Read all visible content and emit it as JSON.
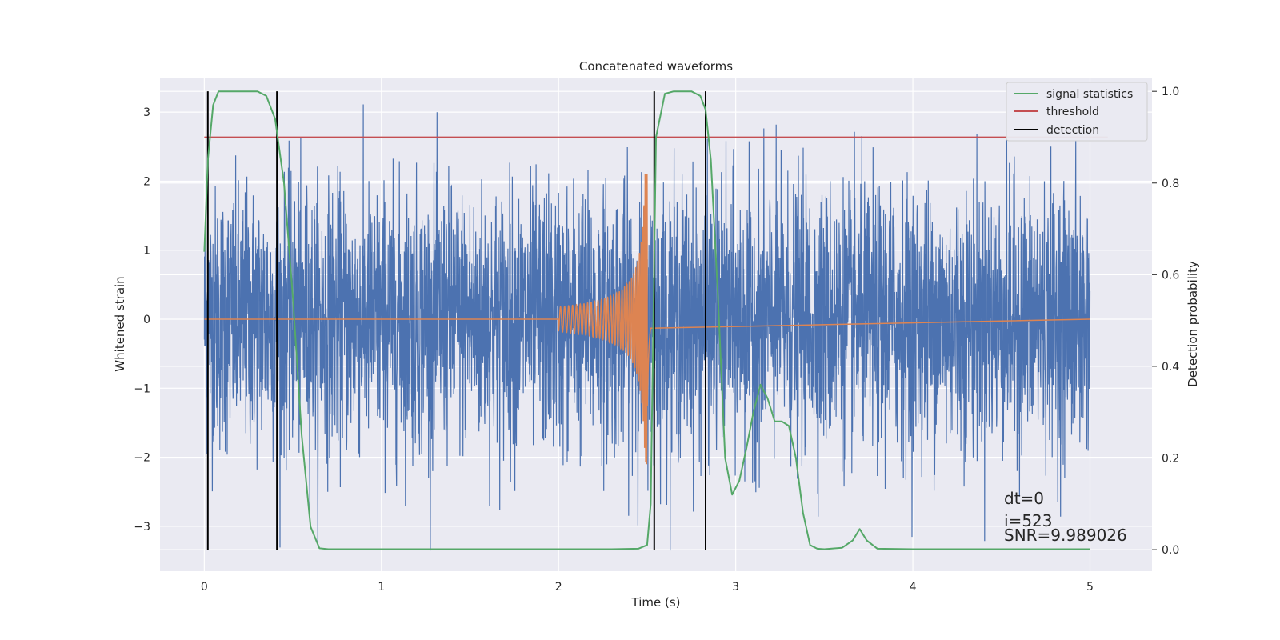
{
  "chart_data": {
    "type": "line",
    "title": "Concatenated waveforms",
    "xlabel": "Time (s)",
    "ylabel": "Whitened strain",
    "y2label": "Detection probability",
    "xlim": [
      -0.25,
      5.35
    ],
    "ylim": [
      -3.65,
      3.5
    ],
    "y2lim": [
      -0.047,
      1.03
    ],
    "xticks": [
      0,
      1,
      2,
      3,
      4,
      5
    ],
    "yticks": [
      -3,
      -2,
      -1,
      0,
      1,
      2,
      3
    ],
    "y2ticks": [
      0.0,
      0.2,
      0.4,
      0.6,
      0.8,
      1.0
    ],
    "xtick_labels": [
      "0",
      "1",
      "2",
      "3",
      "4",
      "5"
    ],
    "ytick_labels": [
      "−3",
      "−2",
      "−1",
      "0",
      "1",
      "2",
      "3"
    ],
    "y2tick_labels": [
      "0.0",
      "0.2",
      "0.4",
      "0.6",
      "0.8",
      "1.0"
    ],
    "grid": true,
    "legend_position": "top-right",
    "colors": {
      "background": "#eaeaf2",
      "grid": "#ffffff",
      "strain": "#4c72b0",
      "template": "#dd8452",
      "statistics": "#55a868",
      "threshold": "#c44e52",
      "detection": "#000000"
    },
    "strain_noise": {
      "x_range": [
        0,
        5.0
      ],
      "samples": 4096,
      "sigma": 0.95,
      "y_max": 3.38,
      "y_min": -3.35
    },
    "template": {
      "x_range": [
        2.0,
        2.52
      ],
      "amplitude_start": 0.18,
      "amplitude_peak": 2.1,
      "x_peak": 2.5
    },
    "series": [
      {
        "name": "signal statistics",
        "axis": "y2",
        "x": [
          0.0,
          0.02,
          0.05,
          0.08,
          0.12,
          0.2,
          0.3,
          0.35,
          0.4,
          0.45,
          0.5,
          0.55,
          0.6,
          0.65,
          0.7,
          1.0,
          1.5,
          2.0,
          2.3,
          2.45,
          2.5,
          2.52,
          2.55,
          2.6,
          2.65,
          2.7,
          2.75,
          2.8,
          2.83,
          2.86,
          2.9,
          2.94,
          2.98,
          3.02,
          3.06,
          3.1,
          3.14,
          3.18,
          3.22,
          3.26,
          3.3,
          3.34,
          3.38,
          3.42,
          3.46,
          3.5,
          3.6,
          3.66,
          3.7,
          3.74,
          3.8,
          4.0,
          4.5,
          5.0
        ],
        "y": [
          0.65,
          0.85,
          0.97,
          1.0,
          1.0,
          1.0,
          1.0,
          0.99,
          0.94,
          0.8,
          0.55,
          0.25,
          0.05,
          0.003,
          0.001,
          0.001,
          0.001,
          0.001,
          0.001,
          0.002,
          0.01,
          0.1,
          0.9,
          0.995,
          1.0,
          1.0,
          1.0,
          0.99,
          0.96,
          0.85,
          0.55,
          0.2,
          0.12,
          0.15,
          0.22,
          0.3,
          0.36,
          0.33,
          0.28,
          0.28,
          0.27,
          0.2,
          0.08,
          0.01,
          0.002,
          0.001,
          0.004,
          0.02,
          0.045,
          0.02,
          0.002,
          0.001,
          0.001,
          0.001
        ]
      },
      {
        "name": "threshold",
        "axis": "y2",
        "x": [
          0.0,
          5.1
        ],
        "y": [
          0.9,
          0.9
        ]
      },
      {
        "name": "detection",
        "axis": "y2",
        "x_positions": [
          0.02,
          0.41,
          2.54,
          2.83
        ],
        "y_range": [
          0.0,
          1.0
        ]
      }
    ],
    "annotations": [
      "dt=0",
      "i=523",
      "SNR=9.989026"
    ]
  }
}
